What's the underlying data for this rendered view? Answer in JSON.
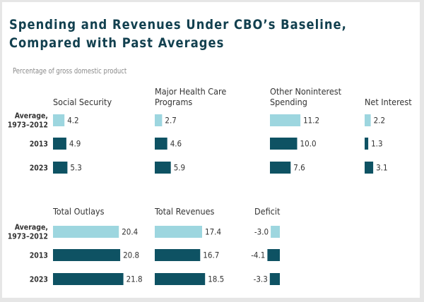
{
  "title_lines": [
    "Spending and Revenues Under CBO’s Baseline,",
    "Compared with Past Averages"
  ],
  "subtitle": "Percentage of gross domestic product",
  "colors": {
    "average": "#9dd6df",
    "projection": "#0e5263",
    "title": "#12404f"
  },
  "chart_data": {
    "type": "bar",
    "title": "Spending and Revenues Under CBO’s Baseline, Compared with Past Averages",
    "ylabel": "Percentage of gross domestic product",
    "row_labels": [
      [
        "Average,",
        "1973–2012"
      ],
      [
        "2013"
      ],
      [
        "2023"
      ]
    ],
    "categories": [
      "Average, 1973–2012",
      "2013",
      "2023"
    ],
    "panels": [
      {
        "group": "spending",
        "series": [
          {
            "name": "Social Security",
            "label_lines": [
              "Social Security"
            ],
            "values": [
              4.2,
              4.9,
              5.3
            ],
            "labels": [
              "4.2",
              "4.9",
              "5.3"
            ]
          },
          {
            "name": "Major Health Care Programs",
            "label_lines": [
              "Major Health Care",
              "Programs"
            ],
            "values": [
              2.7,
              4.6,
              5.9
            ],
            "labels": [
              "2.7",
              "4.6",
              "5.9"
            ]
          },
          {
            "name": "Other Noninterest Spending",
            "label_lines": [
              "Other Noninterest",
              "Spending"
            ],
            "values": [
              11.2,
              10.0,
              7.6
            ],
            "labels": [
              "11.2",
              "10.0",
              "7.6"
            ]
          },
          {
            "name": "Net Interest",
            "label_lines": [
              "Net Interest"
            ],
            "values": [
              2.2,
              1.3,
              3.1
            ],
            "labels": [
              "2.2",
              "1.3",
              "3.1"
            ]
          }
        ]
      },
      {
        "group": "totals",
        "series": [
          {
            "name": "Total Outlays",
            "label_lines": [
              "Total Outlays"
            ],
            "values": [
              20.4,
              20.8,
              21.8
            ],
            "labels": [
              "20.4",
              "20.8",
              "21.8"
            ]
          },
          {
            "name": "Total Revenues",
            "label_lines": [
              "Total Revenues"
            ],
            "values": [
              17.4,
              16.7,
              18.5
            ],
            "labels": [
              "17.4",
              "16.7",
              "18.5"
            ]
          },
          {
            "name": "Deficit",
            "label_lines": [
              "Deficit"
            ],
            "values": [
              -3.0,
              -4.1,
              -3.3
            ],
            "labels": [
              "-3.0",
              "-4.1",
              "-3.3"
            ]
          }
        ]
      }
    ]
  }
}
